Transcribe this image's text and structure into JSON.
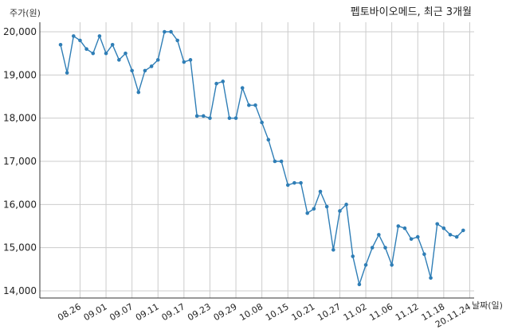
{
  "chart_data": {
    "type": "line",
    "title": "펩토바이오메드, 최근 3개월",
    "ylabel": "주가(원)",
    "xlabel": "날짜(일)",
    "ylim": [
      14000,
      20000
    ],
    "yticks": [
      14000,
      15000,
      16000,
      17000,
      18000,
      19000,
      20000
    ],
    "ytick_labels": [
      "14,000",
      "15,000",
      "16,000",
      "17,000",
      "18,000",
      "19,000",
      "20,000"
    ],
    "xtick_labels": [
      "08.26",
      "09.01",
      "09.07",
      "09.11",
      "09.17",
      "09.23",
      "09.29",
      "10.08",
      "10.15",
      "10.21",
      "10.27",
      "11.02",
      "11.06",
      "11.12",
      "11.18",
      "20.11.24"
    ],
    "xtick_index": [
      3,
      7,
      11,
      15,
      19,
      23,
      27,
      31,
      35,
      39,
      43,
      47,
      51,
      55,
      59,
      63
    ],
    "grid": true,
    "color": "#2f7eb6",
    "series": [
      {
        "values": [
          19700,
          19050,
          19900,
          19800,
          19600,
          19500,
          19900,
          19500,
          19700,
          19350,
          19500,
          19100,
          18600,
          19100,
          19200,
          19350,
          20000,
          20000,
          19800,
          19300,
          19350,
          18050,
          18050,
          18000,
          18800,
          18850,
          18000,
          18000,
          18700,
          18300,
          18300,
          17900,
          17500,
          17000,
          17000,
          16450,
          16500,
          16500,
          15800,
          15900,
          16300,
          15950,
          14950,
          15850,
          16000,
          14800,
          14150,
          14600,
          15000,
          15300,
          15000,
          14600,
          15500,
          15450,
          15200,
          15250,
          14850,
          14300,
          15550,
          15450,
          15300,
          15250,
          15400
        ]
      }
    ]
  }
}
